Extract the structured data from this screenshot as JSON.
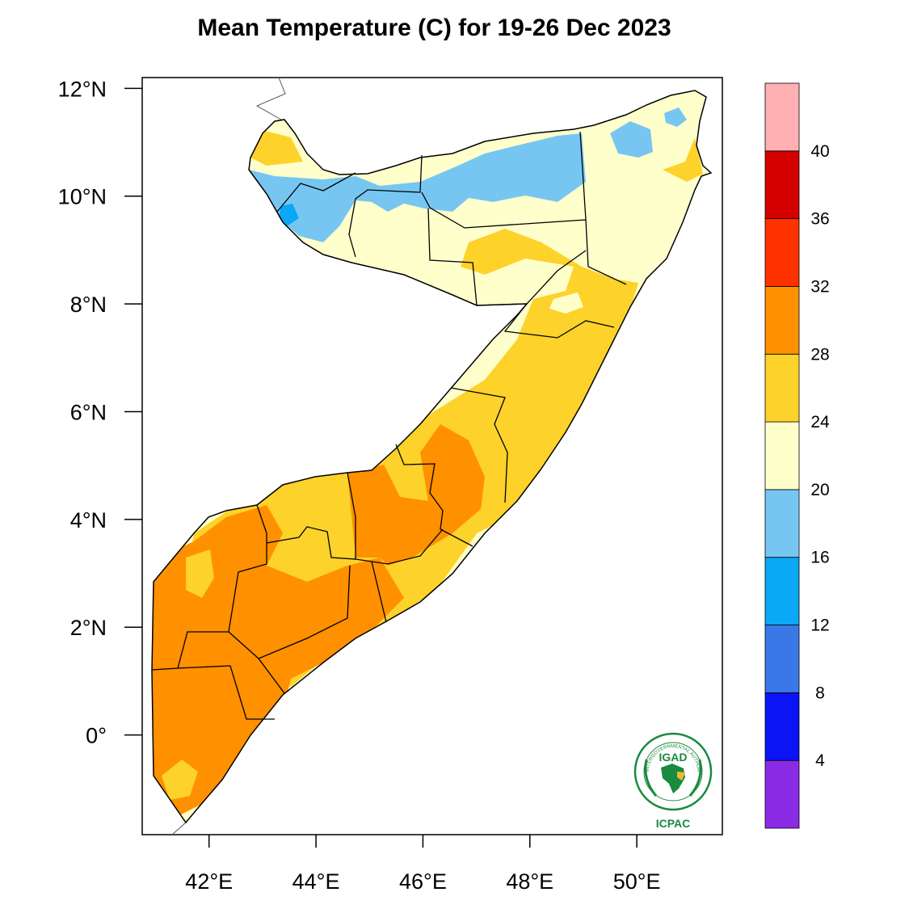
{
  "title": "Mean Temperature (C) for 19-26 Dec 2023",
  "map": {
    "lon_range": [
      40.75,
      51.6
    ],
    "lat_range": [
      -1.85,
      12.2
    ],
    "x_ticks": [
      {
        "value": 42,
        "label": "42°E"
      },
      {
        "value": 44,
        "label": "44°E"
      },
      {
        "value": 46,
        "label": "46°E"
      },
      {
        "value": 48,
        "label": "48°E"
      },
      {
        "value": 50,
        "label": "50°E"
      }
    ],
    "y_ticks": [
      {
        "value": 12,
        "label": "12°N"
      },
      {
        "value": 10,
        "label": "10°N"
      },
      {
        "value": 8,
        "label": "8°N"
      },
      {
        "value": 6,
        "label": "6°N"
      },
      {
        "value": 4,
        "label": "4°N"
      },
      {
        "value": 2,
        "label": "2°N"
      },
      {
        "value": 0,
        "label": "0°"
      }
    ]
  },
  "colorbar": {
    "colors": [
      "#8b2be6",
      "#0a14f5",
      "#3a78e8",
      "#0aa8f5",
      "#77c6f2",
      "#ffffcc",
      "#fdd22a",
      "#ff9000",
      "#ff3300",
      "#d40000",
      "#ffb0b3"
    ],
    "labels": [
      "4",
      "8",
      "12",
      "16",
      "20",
      "24",
      "28",
      "32",
      "36",
      "40"
    ]
  },
  "temperature_bands": {
    "20-24": "#ffffcc",
    "16-20": "#77c6f2",
    "24-28": "#fdd22a",
    "28-32": "#ff9000"
  },
  "logo": {
    "acronym": "IGAD",
    "org": "ICPAC",
    "ring_text": "INTERGOVERNMENTAL AUTHORITY ON DEVELOPMENT"
  }
}
